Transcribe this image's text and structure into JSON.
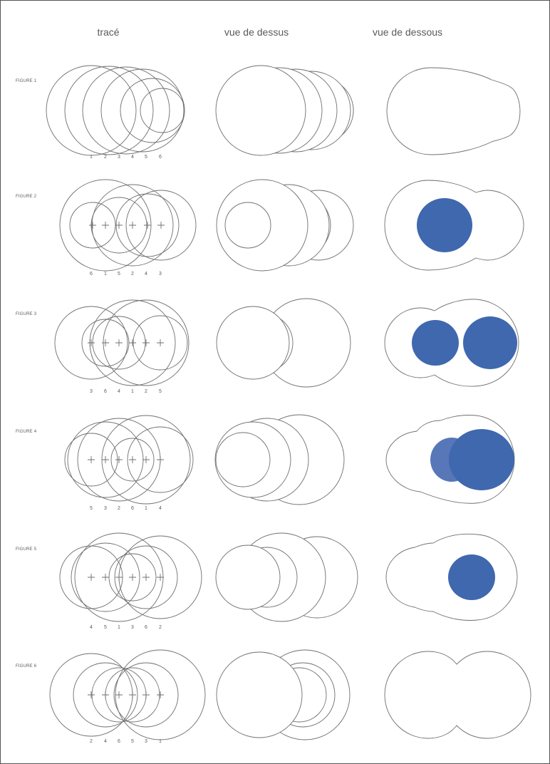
{
  "columns": [
    "tracé",
    "vue de dessus",
    "vue de dessous"
  ],
  "colors": {
    "disc": "#3f68ae",
    "disc_light": "#5777b8",
    "stroke": "#6f6f6f"
  },
  "figures": [
    {
      "label": "FIGURE 1",
      "order": [
        "1",
        "2",
        "3",
        "4",
        "5",
        "6"
      ],
      "centers_marked": false,
      "blue_discs": 0
    },
    {
      "label": "FIGURE 2",
      "order": [
        "6",
        "1",
        "5",
        "2",
        "4",
        "3"
      ],
      "centers_marked": true,
      "blue_discs": 1
    },
    {
      "label": "FIGURE 3",
      "order": [
        "3",
        "6",
        "4",
        "1",
        "2",
        "5"
      ],
      "centers_marked": true,
      "blue_discs": 2
    },
    {
      "label": "FIGURE 4",
      "order": [
        "5",
        "3",
        "2",
        "6",
        "1",
        "4"
      ],
      "centers_marked": true,
      "blue_discs": 2
    },
    {
      "label": "FIGURE 5",
      "order": [
        "4",
        "5",
        "1",
        "3",
        "6",
        "2"
      ],
      "centers_marked": true,
      "blue_discs": 1
    },
    {
      "label": "FIGURE 6",
      "order": [
        "2",
        "4",
        "6",
        "5",
        "3",
        "1"
      ],
      "centers_marked": true,
      "blue_discs": 0
    }
  ]
}
